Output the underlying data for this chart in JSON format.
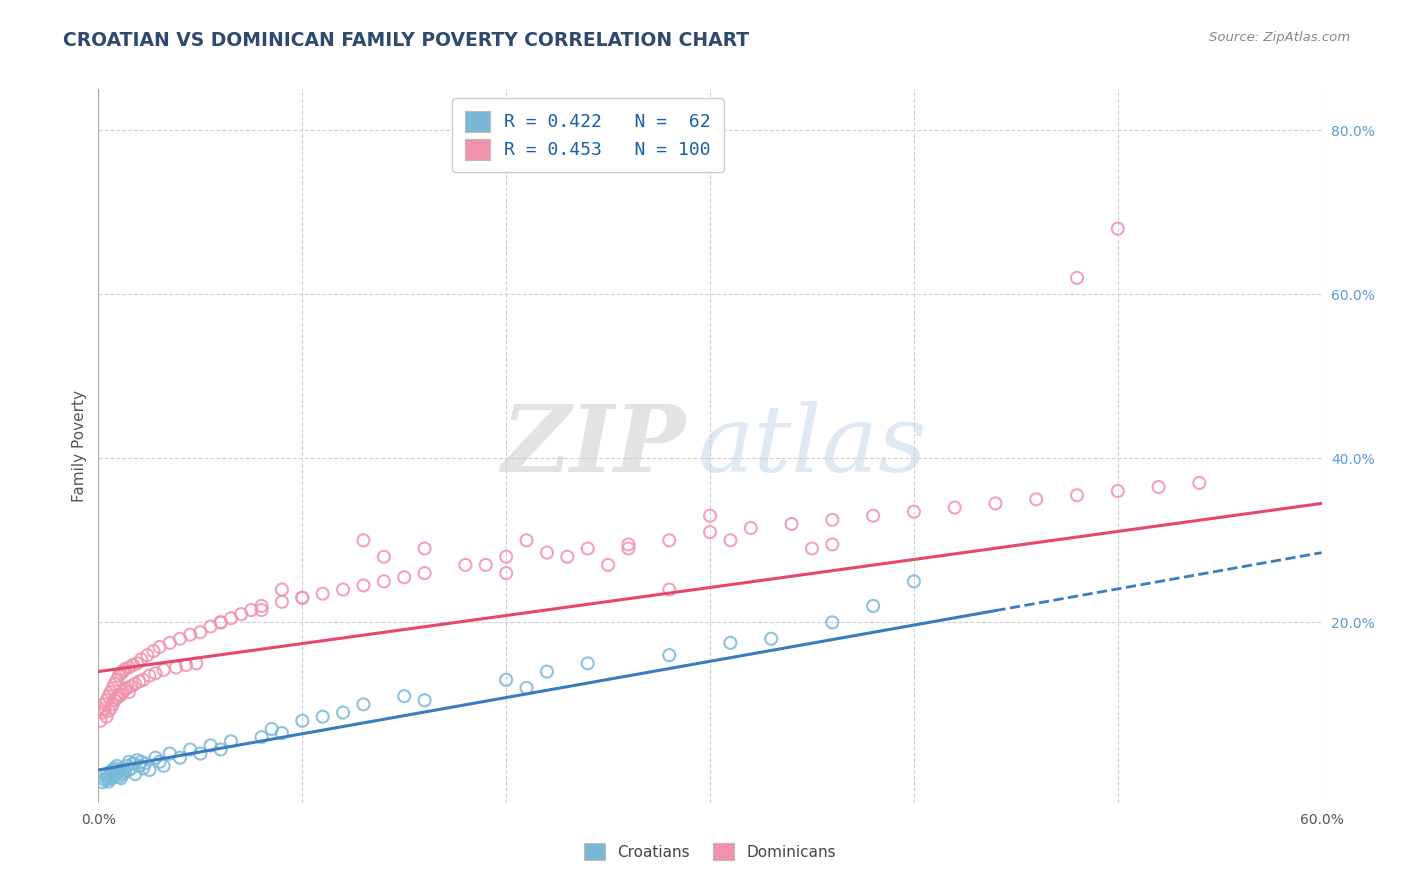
{
  "title": "CROATIAN VS DOMINICAN FAMILY POVERTY CORRELATION CHART",
  "source": "Source: ZipAtlas.com",
  "ylabel": "Family Poverty",
  "xlim": [
    0.0,
    0.6
  ],
  "ylim": [
    -0.02,
    0.85
  ],
  "croatian_R": 0.422,
  "croatian_N": 62,
  "dominican_R": 0.453,
  "dominican_N": 100,
  "croatian_color": "#7ab8d9",
  "dominican_color": "#f093aa",
  "croatian_line_color": "#3a7dbf",
  "dominican_line_color": "#e8476a",
  "watermark_zip": "ZIP",
  "watermark_atlas": "atlas",
  "background_color": "#ffffff",
  "grid_color": "#d0d0d0",
  "legend_label_1": "Croatians",
  "legend_label_2": "Dominicans",
  "title_color": "#2e4a6e",
  "source_color": "#888888",
  "axis_label_color": "#555555",
  "tick_color": "#555555",
  "right_ytick_color": "#5b9bd5",
  "croatian_x": [
    0.002,
    0.003,
    0.004,
    0.004,
    0.005,
    0.005,
    0.006,
    0.006,
    0.007,
    0.007,
    0.008,
    0.008,
    0.009,
    0.009,
    0.01,
    0.01,
    0.011,
    0.011,
    0.012,
    0.012,
    0.013,
    0.014,
    0.015,
    0.015,
    0.016,
    0.017,
    0.018,
    0.019,
    0.02,
    0.021,
    0.022,
    0.023,
    0.025,
    0.028,
    0.03,
    0.032,
    0.035,
    0.04,
    0.045,
    0.05,
    0.055,
    0.06,
    0.065,
    0.08,
    0.085,
    0.09,
    0.1,
    0.11,
    0.12,
    0.13,
    0.15,
    0.16,
    0.2,
    0.21,
    0.22,
    0.24,
    0.28,
    0.31,
    0.33,
    0.36,
    0.38,
    0.4
  ],
  "croatian_y": [
    0.005,
    0.008,
    0.01,
    0.015,
    0.006,
    0.012,
    0.009,
    0.018,
    0.011,
    0.02,
    0.013,
    0.022,
    0.015,
    0.025,
    0.012,
    0.018,
    0.01,
    0.02,
    0.015,
    0.022,
    0.018,
    0.025,
    0.02,
    0.03,
    0.022,
    0.028,
    0.015,
    0.032,
    0.025,
    0.03,
    0.022,
    0.028,
    0.02,
    0.035,
    0.03,
    0.025,
    0.04,
    0.035,
    0.045,
    0.04,
    0.05,
    0.045,
    0.055,
    0.06,
    0.07,
    0.065,
    0.08,
    0.085,
    0.09,
    0.1,
    0.11,
    0.105,
    0.13,
    0.12,
    0.14,
    0.15,
    0.16,
    0.175,
    0.18,
    0.2,
    0.22,
    0.25
  ],
  "dominican_x": [
    0.001,
    0.002,
    0.003,
    0.003,
    0.004,
    0.004,
    0.005,
    0.005,
    0.006,
    0.006,
    0.007,
    0.007,
    0.008,
    0.008,
    0.009,
    0.009,
    0.01,
    0.01,
    0.011,
    0.011,
    0.012,
    0.012,
    0.013,
    0.013,
    0.014,
    0.015,
    0.015,
    0.016,
    0.017,
    0.018,
    0.019,
    0.02,
    0.021,
    0.022,
    0.024,
    0.025,
    0.027,
    0.028,
    0.03,
    0.032,
    0.035,
    0.038,
    0.04,
    0.043,
    0.045,
    0.048,
    0.05,
    0.055,
    0.06,
    0.065,
    0.07,
    0.075,
    0.08,
    0.09,
    0.1,
    0.11,
    0.12,
    0.13,
    0.14,
    0.15,
    0.16,
    0.18,
    0.2,
    0.22,
    0.24,
    0.26,
    0.28,
    0.3,
    0.32,
    0.34,
    0.36,
    0.38,
    0.4,
    0.42,
    0.44,
    0.46,
    0.48,
    0.5,
    0.52,
    0.54,
    0.48,
    0.5,
    0.26,
    0.3,
    0.31,
    0.35,
    0.36,
    0.28,
    0.13,
    0.14,
    0.16,
    0.19,
    0.2,
    0.21,
    0.23,
    0.25,
    0.06,
    0.08,
    0.09,
    0.1
  ],
  "dominican_y": [
    0.08,
    0.09,
    0.095,
    0.1,
    0.085,
    0.105,
    0.092,
    0.11,
    0.095,
    0.115,
    0.1,
    0.12,
    0.105,
    0.125,
    0.108,
    0.13,
    0.11,
    0.135,
    0.112,
    0.138,
    0.115,
    0.14,
    0.118,
    0.143,
    0.12,
    0.115,
    0.145,
    0.122,
    0.148,
    0.125,
    0.15,
    0.128,
    0.155,
    0.13,
    0.16,
    0.135,
    0.165,
    0.138,
    0.17,
    0.142,
    0.175,
    0.145,
    0.18,
    0.148,
    0.185,
    0.15,
    0.188,
    0.195,
    0.2,
    0.205,
    0.21,
    0.215,
    0.22,
    0.225,
    0.23,
    0.235,
    0.24,
    0.245,
    0.25,
    0.255,
    0.26,
    0.27,
    0.28,
    0.285,
    0.29,
    0.295,
    0.3,
    0.31,
    0.315,
    0.32,
    0.325,
    0.33,
    0.335,
    0.34,
    0.345,
    0.35,
    0.355,
    0.36,
    0.365,
    0.37,
    0.62,
    0.68,
    0.29,
    0.33,
    0.3,
    0.29,
    0.295,
    0.24,
    0.3,
    0.28,
    0.29,
    0.27,
    0.26,
    0.3,
    0.28,
    0.27,
    0.2,
    0.215,
    0.24,
    0.23
  ]
}
